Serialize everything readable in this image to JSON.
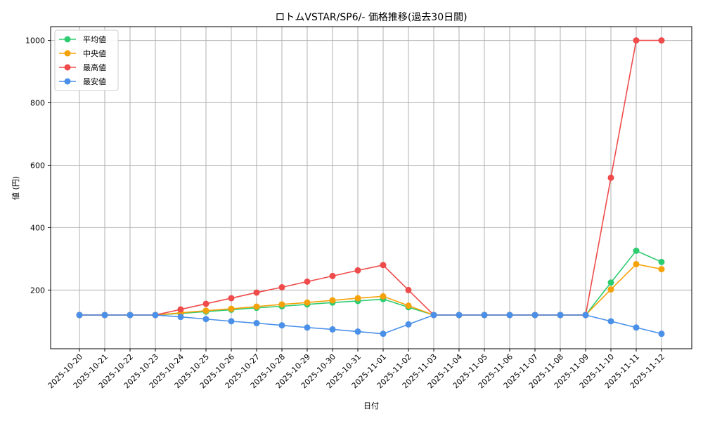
{
  "chart_data": {
    "type": "line",
    "title": "ロトムVSTAR/SP6/- 価格推移(過去30日間)",
    "xlabel": "日付",
    "ylabel": "値 (円)",
    "categories": [
      "2025-10-20",
      "2025-10-21",
      "2025-10-22",
      "2025-10-23",
      "2025-10-24",
      "2025-10-25",
      "2025-10-26",
      "2025-10-27",
      "2025-10-28",
      "2025-10-29",
      "2025-10-30",
      "2025-10-31",
      "2025-11-01",
      "2025-11-02",
      "2025-11-03",
      "2025-11-04",
      "2025-11-05",
      "2025-11-06",
      "2025-11-07",
      "2025-11-08",
      "2025-11-09",
      "2025-11-10",
      "2025-11-11",
      "2025-11-12"
    ],
    "ylim": [
      12,
      1044
    ],
    "yticks": [
      200,
      400,
      600,
      800,
      1000
    ],
    "grid": true,
    "legend_position": "top-left",
    "series": [
      {
        "name": "平均値",
        "color": "#2ecc71",
        "values": [
          120,
          120,
          120,
          120,
          125,
          131,
          137,
          143,
          148,
          154,
          160,
          165,
          171,
          145,
          120,
          120,
          120,
          120,
          120,
          120,
          120,
          224,
          326,
          290
        ]
      },
      {
        "name": "中央値",
        "color": "#f5a20a",
        "values": [
          120,
          120,
          120,
          120,
          127,
          134,
          140,
          147,
          154,
          160,
          167,
          174,
          180,
          150,
          120,
          120,
          120,
          120,
          120,
          120,
          120,
          202,
          283,
          267
        ]
      },
      {
        "name": "最高値",
        "color": "#ef4b4b",
        "values": [
          120,
          120,
          120,
          120,
          138,
          156,
          174,
          192,
          209,
          227,
          245,
          263,
          280,
          200,
          120,
          120,
          120,
          120,
          120,
          120,
          120,
          560,
          1000,
          1000
        ]
      },
      {
        "name": "最安値",
        "color": "#4a90e8",
        "values": [
          120,
          120,
          120,
          120,
          114,
          107,
          100,
          94,
          87,
          80,
          74,
          67,
          60,
          90,
          120,
          120,
          120,
          120,
          120,
          120,
          120,
          100,
          80,
          60
        ]
      }
    ]
  }
}
